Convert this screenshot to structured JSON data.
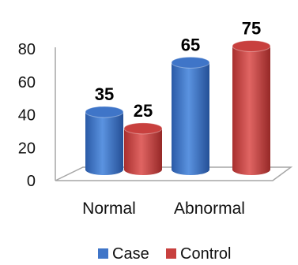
{
  "chart_data": {
    "type": "bar",
    "categories": [
      "Normal",
      "Abnormal"
    ],
    "series": [
      {
        "name": "Case",
        "values": [
          35,
          65
        ],
        "color": "#3f75c8"
      },
      {
        "name": "Control",
        "values": [
          25,
          75
        ],
        "color": "#c8403e"
      }
    ],
    "yticks": [
      0,
      20,
      40,
      60,
      80
    ],
    "ylim": [
      0,
      80
    ],
    "grid": false,
    "style": "3d-cylinder",
    "legend": "bottom-center"
  }
}
